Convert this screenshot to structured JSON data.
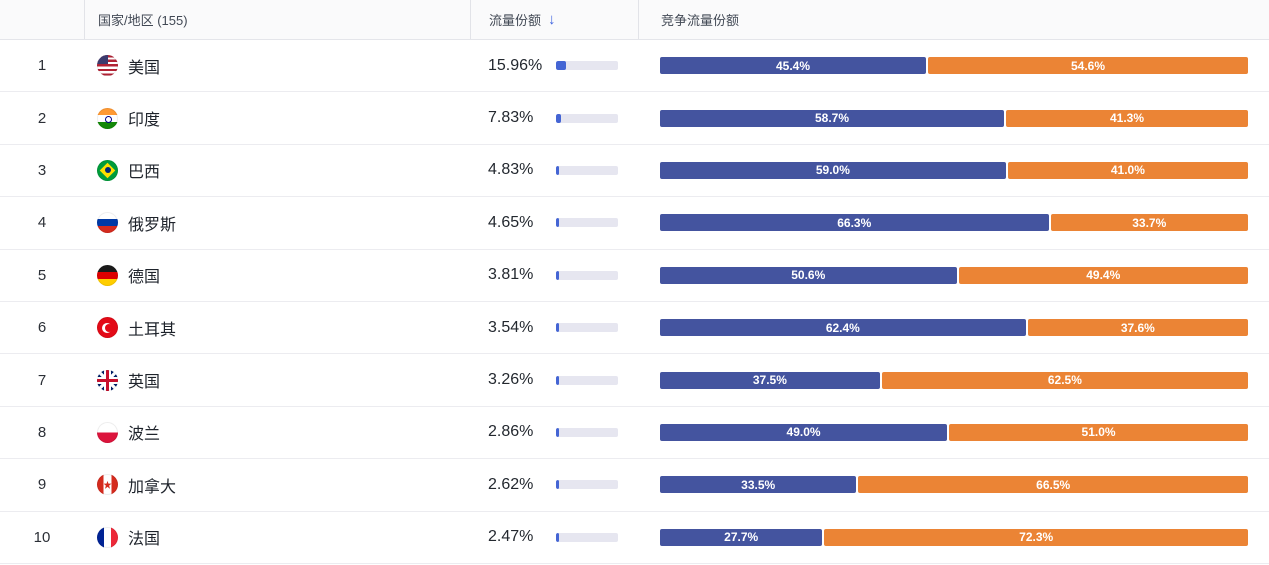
{
  "header": {
    "country_label": "国家/地区 (155)",
    "traffic_label": "流量份额",
    "sort_icon": "↓",
    "competition_label": "竞争流量份额"
  },
  "colors": {
    "bar_blue": "#44549F",
    "bar_orange": "#EB8435",
    "mini_bar_fill": "#4465D4",
    "mini_bar_track": "#E6E6F0",
    "sort_arrow_blue": "#3E63E0"
  },
  "rows": [
    {
      "rank": 1,
      "country": "美国",
      "flag": "us",
      "traffic_share": "15.96%",
      "traffic_value": 15.96,
      "share_blue": 45.4,
      "share_orange": 54.6,
      "share_blue_label": "45.4%",
      "share_orange_label": "54.6%"
    },
    {
      "rank": 2,
      "country": "印度",
      "flag": "in",
      "traffic_share": "7.83%",
      "traffic_value": 7.83,
      "share_blue": 58.7,
      "share_orange": 41.3,
      "share_blue_label": "58.7%",
      "share_orange_label": "41.3%"
    },
    {
      "rank": 3,
      "country": "巴西",
      "flag": "br",
      "traffic_share": "4.83%",
      "traffic_value": 4.83,
      "share_blue": 59.0,
      "share_orange": 41.0,
      "share_blue_label": "59.0%",
      "share_orange_label": "41.0%"
    },
    {
      "rank": 4,
      "country": "俄罗斯",
      "flag": "ru",
      "traffic_share": "4.65%",
      "traffic_value": 4.65,
      "share_blue": 66.3,
      "share_orange": 33.7,
      "share_blue_label": "66.3%",
      "share_orange_label": "33.7%"
    },
    {
      "rank": 5,
      "country": "德国",
      "flag": "de",
      "traffic_share": "3.81%",
      "traffic_value": 3.81,
      "share_blue": 50.6,
      "share_orange": 49.4,
      "share_blue_label": "50.6%",
      "share_orange_label": "49.4%"
    },
    {
      "rank": 6,
      "country": "土耳其",
      "flag": "tr",
      "traffic_share": "3.54%",
      "traffic_value": 3.54,
      "share_blue": 62.4,
      "share_orange": 37.6,
      "share_blue_label": "62.4%",
      "share_orange_label": "37.6%"
    },
    {
      "rank": 7,
      "country": "英国",
      "flag": "gb",
      "traffic_share": "3.26%",
      "traffic_value": 3.26,
      "share_blue": 37.5,
      "share_orange": 62.5,
      "share_blue_label": "37.5%",
      "share_orange_label": "62.5%"
    },
    {
      "rank": 8,
      "country": "波兰",
      "flag": "pl",
      "traffic_share": "2.86%",
      "traffic_value": 2.86,
      "share_blue": 49.0,
      "share_orange": 51.0,
      "share_blue_label": "49.0%",
      "share_orange_label": "51.0%"
    },
    {
      "rank": 9,
      "country": "加拿大",
      "flag": "ca",
      "traffic_share": "2.62%",
      "traffic_value": 2.62,
      "share_blue": 33.5,
      "share_orange": 66.5,
      "share_blue_label": "33.5%",
      "share_orange_label": "66.5%"
    },
    {
      "rank": 10,
      "country": "法国",
      "flag": "fr",
      "traffic_share": "2.47%",
      "traffic_value": 2.47,
      "share_blue": 27.7,
      "share_orange": 72.3,
      "share_blue_label": "27.7%",
      "share_orange_label": "72.3%"
    }
  ]
}
